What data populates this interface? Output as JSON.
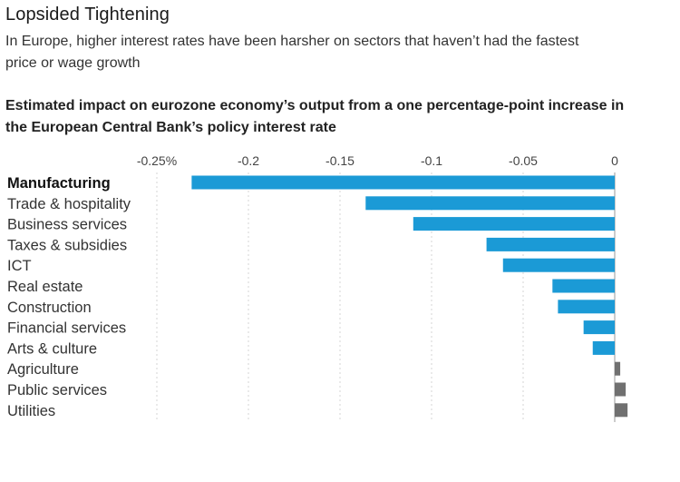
{
  "title": "Lopsided Tightening",
  "subtitle_lines": [
    "In Europe, higher interest rates have been harsher on sectors that haven’t had the fastest",
    "price or wage growth"
  ],
  "heading_lines": [
    "Estimated impact on eurozone economy’s output from a one percentage-point increase in",
    "the European Central Bank’s policy interest rate"
  ],
  "chart_data": {
    "type": "bar",
    "orientation": "horizontal",
    "title": "Estimated impact on eurozone economy’s output from a one percentage-point increase in the European Central Bank’s policy interest rate",
    "xlabel": "",
    "ylabel": "",
    "xlim": [
      -0.25,
      0
    ],
    "x_ticks": [
      -0.25,
      -0.2,
      -0.15,
      -0.1,
      -0.05,
      0
    ],
    "x_tick_labels": [
      "-0.25%",
      "-0.2",
      "-0.15",
      "-0.1",
      "-0.05",
      "0"
    ],
    "categories": [
      "Manufacturing",
      "Trade & hospitality",
      "Business services",
      "Taxes & subsidies",
      "ICT",
      "Real estate",
      "Construction",
      "Financial services",
      "Arts & culture",
      "Agriculture",
      "Public services",
      "Utilities"
    ],
    "values": [
      -0.231,
      -0.136,
      -0.11,
      -0.07,
      -0.061,
      -0.034,
      -0.031,
      -0.017,
      -0.012,
      0.003,
      0.006,
      0.007
    ],
    "highlight_category": "Manufacturing",
    "colors": {
      "negative": "#1b9ad6",
      "positive": "#707070"
    },
    "grid": true
  }
}
